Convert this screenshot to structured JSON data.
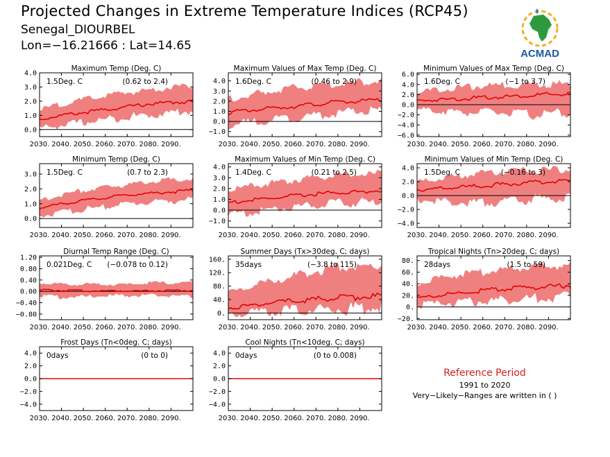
{
  "header": {
    "title": "Projected Changes in Extreme Temperature Indices (RCP45)",
    "station": "Senegal_DIOURBEL",
    "coords": "Lon=−16.21666 : Lat=14.65"
  },
  "logo": {
    "text": "ACMAD",
    "icon": "africa-map-logo"
  },
  "reference": {
    "title": "Reference Period",
    "years": "1991 to 2020",
    "note": "Very−Likely−Ranges are written in ( )"
  },
  "colors": {
    "band": "#f08080",
    "line": "#e80000",
    "axis": "#000000"
  },
  "x_tick_labels": [
    "2030.",
    "2040.",
    "2050.",
    "2060.",
    "2070.",
    "2080.",
    "2090."
  ],
  "chart_data": [
    {
      "type": "area",
      "title": "Maximum Temp (Deg. C)",
      "change": "1.5Deg. C",
      "range": "(0.62 to 2.4)",
      "x": [
        2030,
        2040,
        2050,
        2060,
        2070,
        2080,
        2090,
        2100
      ],
      "median": [
        0.7,
        1.0,
        1.2,
        1.4,
        1.6,
        1.8,
        1.9,
        2.0
      ],
      "lower": [
        0.1,
        0.3,
        0.5,
        0.7,
        0.9,
        1.0,
        1.2,
        1.3
      ],
      "upper": [
        1.4,
        1.8,
        2.1,
        2.4,
        2.6,
        2.8,
        3.0,
        3.1
      ],
      "ylim": [
        -0.5,
        4.0
      ],
      "yticks": [
        "4.0",
        "3.0",
        "2.0",
        "1.0",
        "0.0"
      ],
      "ytick_vals": [
        4,
        3,
        2,
        1,
        0
      ]
    },
    {
      "type": "area",
      "title": "Maximum Values of Max Temp (Deg. C)",
      "change": "1.6Deg. C",
      "range": "(0.46 to 2.9)",
      "x": [
        2030,
        2040,
        2050,
        2060,
        2070,
        2080,
        2090,
        2100
      ],
      "median": [
        0.9,
        1.1,
        1.3,
        1.5,
        1.7,
        1.9,
        2.0,
        2.1
      ],
      "lower": [
        -0.4,
        -0.1,
        0.2,
        0.4,
        0.6,
        0.8,
        1.0,
        1.1
      ],
      "upper": [
        2.2,
        2.6,
        3.0,
        3.3,
        3.5,
        3.7,
        3.9,
        4.0
      ],
      "ylim": [
        -1.5,
        4.8
      ],
      "yticks": [
        "4.0",
        "3.0",
        "2.0",
        "1.0",
        "0.0",
        "−1.0"
      ],
      "ytick_vals": [
        4,
        3,
        2,
        1,
        0,
        -1
      ]
    },
    {
      "type": "area",
      "title": "Minimum Values of Max Temp (Deg. C)",
      "change": "1.6Deg. C",
      "range": "(−1 to 3.7)",
      "x": [
        2030,
        2040,
        2050,
        2060,
        2070,
        2080,
        2090,
        2100
      ],
      "median": [
        0.8,
        1.0,
        1.2,
        1.4,
        1.6,
        1.8,
        2.0,
        2.1
      ],
      "lower": [
        -1.0,
        -1.2,
        -1.5,
        -1.5,
        -1.6,
        -2.0,
        -1.8,
        -1.6
      ],
      "upper": [
        2.5,
        3.0,
        3.4,
        3.7,
        3.9,
        4.0,
        4.1,
        4.1
      ],
      "ylim": [
        -6.3,
        6.3
      ],
      "yticks": [
        "6.0",
        "4.0",
        "2.0",
        "0.0",
        "−2.0",
        "−4.0",
        "−6.0"
      ],
      "ytick_vals": [
        6,
        4,
        2,
        0,
        -2,
        -4,
        -6
      ]
    },
    {
      "type": "area",
      "title": "Minimum Temp (Deg. C)",
      "change": "1.5Deg. C",
      "range": "(0.7 to 2.3)",
      "x": [
        2030,
        2040,
        2050,
        2060,
        2070,
        2080,
        2090,
        2100
      ],
      "median": [
        0.7,
        1.0,
        1.2,
        1.4,
        1.6,
        1.7,
        1.8,
        1.9
      ],
      "lower": [
        0.2,
        0.4,
        0.6,
        0.8,
        1.0,
        1.1,
        1.2,
        1.3
      ],
      "upper": [
        1.2,
        1.6,
        1.9,
        2.1,
        2.3,
        2.5,
        2.6,
        2.7
      ],
      "ylim": [
        -0.6,
        3.7
      ],
      "yticks": [
        "3.0",
        "2.0",
        "1.0",
        "0.0"
      ],
      "ytick_vals": [
        3,
        2,
        1,
        0
      ]
    },
    {
      "type": "area",
      "title": "Maximum Values of Min Temp (Deg. C)",
      "change": "1.4Deg. C",
      "range": "(0.21 to 2.5)",
      "x": [
        2030,
        2040,
        2050,
        2060,
        2070,
        2080,
        2090,
        2100
      ],
      "median": [
        0.7,
        0.9,
        1.1,
        1.3,
        1.5,
        1.6,
        1.7,
        1.8
      ],
      "lower": [
        -0.4,
        -0.2,
        0.1,
        0.3,
        0.5,
        0.6,
        0.7,
        0.8
      ],
      "upper": [
        1.8,
        2.2,
        2.5,
        2.8,
        3.0,
        3.2,
        3.3,
        3.4
      ],
      "ylim": [
        -1.6,
        4.3
      ],
      "yticks": [
        "4.0",
        "3.0",
        "2.0",
        "1.0",
        "0.0",
        "−1.0"
      ],
      "ytick_vals": [
        4,
        3,
        2,
        1,
        0,
        -1
      ]
    },
    {
      "type": "area",
      "title": "Minimum Values of Min Temp (Deg. C)",
      "change": "1.5Deg. C",
      "range": "(−0.16 to 3)",
      "x": [
        2030,
        2040,
        2050,
        2060,
        2070,
        2080,
        2090,
        2100
      ],
      "median": [
        0.8,
        1.0,
        1.2,
        1.4,
        1.6,
        1.8,
        2.0,
        2.1
      ],
      "lower": [
        -0.6,
        -0.8,
        -1.0,
        -1.0,
        -0.8,
        -0.6,
        -0.4,
        -0.3
      ],
      "upper": [
        2.0,
        2.5,
        2.9,
        3.2,
        3.4,
        3.6,
        3.7,
        3.8
      ],
      "ylim": [
        -4.6,
        4.6
      ],
      "yticks": [
        "4.0",
        "2.0",
        "0.0",
        "−2.0",
        "−4.0"
      ],
      "ytick_vals": [
        4,
        2,
        0,
        -2,
        -4
      ]
    },
    {
      "type": "area",
      "title": "Diurnal Temp Range (Deg. C)",
      "change": "0.021Deg. C",
      "range": "(−0.078 to 0.12)",
      "x": [
        2030,
        2040,
        2050,
        2060,
        2070,
        2080,
        2090,
        2100
      ],
      "median": [
        0.05,
        0.03,
        0.02,
        0.02,
        0.02,
        0.02,
        0.03,
        0.03
      ],
      "lower": [
        -0.15,
        -0.2,
        -0.2,
        -0.15,
        -0.15,
        -0.15,
        -0.15,
        -0.2
      ],
      "upper": [
        0.3,
        0.25,
        0.25,
        0.25,
        0.25,
        0.3,
        0.3,
        0.3
      ],
      "ylim": [
        -1.0,
        1.25
      ],
      "yticks": [
        "1.20",
        "0.80",
        "0.40",
        "0.00",
        "−0.40",
        "−0.80"
      ],
      "ytick_vals": [
        1.2,
        0.8,
        0.4,
        0,
        -0.4,
        -0.8
      ]
    },
    {
      "type": "area",
      "title": "Summer Days (Tx>30deg. C; days)",
      "change": "35days",
      "range": "(−3.8 to 115)",
      "x": [
        2030,
        2040,
        2050,
        2060,
        2070,
        2080,
        2090,
        2100
      ],
      "median": [
        15,
        22,
        30,
        36,
        40,
        45,
        48,
        50
      ],
      "lower": [
        -5,
        0,
        5,
        8,
        10,
        12,
        14,
        16
      ],
      "upper": [
        60,
        80,
        95,
        110,
        125,
        135,
        140,
        145
      ],
      "ylim": [
        -20,
        170
      ],
      "yticks": [
        "160.",
        "120.",
        "80.",
        "40.",
        "0."
      ],
      "ytick_vals": [
        160,
        120,
        80,
        40,
        0
      ]
    },
    {
      "type": "area",
      "title": "Tropical Nights (Tn>20deg. C; days)",
      "change": "28days",
      "range": "(1.5 to 59)",
      "x": [
        2030,
        2040,
        2050,
        2060,
        2070,
        2080,
        2090,
        2100
      ],
      "median": [
        15,
        20,
        24,
        28,
        31,
        33,
        35,
        37
      ],
      "lower": [
        2,
        6,
        8,
        10,
        12,
        14,
        16,
        18
      ],
      "upper": [
        40,
        50,
        56,
        60,
        64,
        68,
        70,
        72
      ],
      "ylim": [
        -22,
        88
      ],
      "yticks": [
        "80.",
        "60.",
        "40.",
        "20.",
        "0.",
        "−20."
      ],
      "ytick_vals": [
        80,
        60,
        40,
        20,
        0,
        -20
      ]
    },
    {
      "type": "area",
      "title": "Frost Days (Tn<0deg. C; days)",
      "change": "0days",
      "range": "(0 to 0)",
      "x": [
        2030,
        2040,
        2050,
        2060,
        2070,
        2080,
        2090,
        2100
      ],
      "median": [
        0,
        0,
        0,
        0,
        0,
        0,
        0,
        0
      ],
      "lower": [
        0,
        0,
        0,
        0,
        0,
        0,
        0,
        0
      ],
      "upper": [
        0,
        0,
        0,
        0,
        0,
        0,
        0,
        0
      ],
      "ylim": [
        -5,
        5
      ],
      "yticks": [
        "4.0",
        "2.0",
        "0.0",
        "−2.0",
        "−4.0"
      ],
      "ytick_vals": [
        4,
        2,
        0,
        -2,
        -4
      ]
    },
    {
      "type": "area",
      "title": "Cool Nights (Tn<10deg. C; days)",
      "change": "0days",
      "range": "(0 to 0.008)",
      "x": [
        2030,
        2040,
        2050,
        2060,
        2070,
        2080,
        2090,
        2100
      ],
      "median": [
        0,
        0,
        0,
        0,
        0,
        0,
        0,
        0
      ],
      "lower": [
        0,
        0,
        0,
        0,
        0,
        0,
        0,
        0
      ],
      "upper": [
        0,
        0,
        0,
        0,
        0,
        0,
        0,
        0.01
      ],
      "ylim": [
        -5,
        5
      ],
      "yticks": [
        "4.0",
        "2.0",
        "0.0",
        "−2.0",
        "−4.0"
      ],
      "ytick_vals": [
        4,
        2,
        0,
        -2,
        -4
      ]
    }
  ]
}
